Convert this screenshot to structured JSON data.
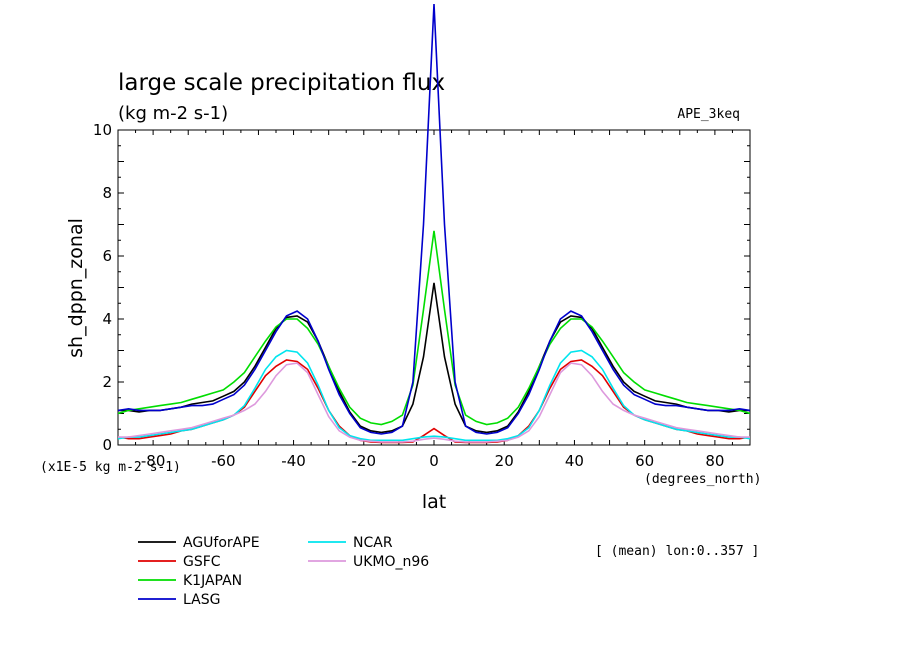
{
  "chart_data": {
    "type": "line",
    "title": "large scale precipitation flux",
    "units": "(kg m-2 s-1)",
    "experiment": "APE_3keq",
    "ylabel": "sh_dppn_zonal",
    "xlabel": "lat",
    "x_units": "(degrees_north)",
    "y_scale_note": "(x1E-5 kg m-2 s-1)",
    "averaging_note": "[ (mean) lon:0..357 ]",
    "xlim": [
      -90,
      90
    ],
    "ylim": [
      0,
      10
    ],
    "x_ticks": [
      -80,
      -60,
      -40,
      -20,
      0,
      20,
      40,
      60,
      80
    ],
    "y_ticks": [
      0,
      2,
      4,
      6,
      8,
      10
    ],
    "x": [
      -90,
      -87,
      -84,
      -81,
      -78,
      -75,
      -72,
      -69,
      -66,
      -63,
      -60,
      -57,
      -54,
      -51,
      -48,
      -45,
      -42,
      -39,
      -36,
      -33,
      -30,
      -27,
      -24,
      -21,
      -18,
      -15,
      -12,
      -9,
      -6,
      -3,
      0,
      3,
      6,
      9,
      12,
      15,
      18,
      21,
      24,
      27,
      30,
      33,
      36,
      39,
      42,
      45,
      48,
      51,
      54,
      57,
      60,
      63,
      66,
      69,
      72,
      75,
      78,
      81,
      84,
      87,
      90
    ],
    "series": [
      {
        "name": "AGUforAPE",
        "color": "#000000",
        "values": [
          1.1,
          1.1,
          1.05,
          1.1,
          1.1,
          1.15,
          1.2,
          1.3,
          1.35,
          1.4,
          1.55,
          1.7,
          2.0,
          2.5,
          3.1,
          3.7,
          4.05,
          4.1,
          3.9,
          3.3,
          2.5,
          1.7,
          1.05,
          0.6,
          0.45,
          0.4,
          0.45,
          0.6,
          1.3,
          2.8,
          5.15,
          2.8,
          1.3,
          0.6,
          0.45,
          0.4,
          0.45,
          0.6,
          1.05,
          1.7,
          2.5,
          3.3,
          3.9,
          4.1,
          4.05,
          3.7,
          3.1,
          2.5,
          2.0,
          1.7,
          1.55,
          1.4,
          1.35,
          1.3,
          1.2,
          1.15,
          1.1,
          1.1,
          1.05,
          1.1,
          1.1
        ]
      },
      {
        "name": "GSFC",
        "color": "#e00000",
        "values": [
          0.25,
          0.2,
          0.2,
          0.25,
          0.3,
          0.35,
          0.45,
          0.5,
          0.6,
          0.7,
          0.8,
          0.95,
          1.2,
          1.7,
          2.2,
          2.5,
          2.7,
          2.65,
          2.4,
          1.8,
          1.1,
          0.6,
          0.3,
          0.15,
          0.1,
          0.08,
          0.08,
          0.08,
          0.1,
          0.3,
          0.52,
          0.3,
          0.1,
          0.08,
          0.08,
          0.08,
          0.1,
          0.15,
          0.3,
          0.6,
          1.1,
          1.8,
          2.4,
          2.65,
          2.7,
          2.5,
          2.2,
          1.7,
          1.2,
          0.95,
          0.8,
          0.7,
          0.6,
          0.5,
          0.45,
          0.35,
          0.3,
          0.25,
          0.2,
          0.2,
          0.25
        ]
      },
      {
        "name": "K1JAPAN",
        "color": "#00dd00",
        "values": [
          1.0,
          1.1,
          1.15,
          1.2,
          1.25,
          1.3,
          1.35,
          1.45,
          1.55,
          1.65,
          1.75,
          2.0,
          2.3,
          2.8,
          3.3,
          3.75,
          4.0,
          4.0,
          3.7,
          3.2,
          2.5,
          1.8,
          1.2,
          0.85,
          0.7,
          0.65,
          0.75,
          0.95,
          1.9,
          4.3,
          6.8,
          4.3,
          1.9,
          0.95,
          0.75,
          0.65,
          0.7,
          0.85,
          1.2,
          1.8,
          2.5,
          3.2,
          3.7,
          4.0,
          4.0,
          3.75,
          3.3,
          2.8,
          2.3,
          2.0,
          1.75,
          1.65,
          1.55,
          1.45,
          1.35,
          1.3,
          1.25,
          1.2,
          1.15,
          1.1,
          1.0
        ]
      },
      {
        "name": "LASG",
        "color": "#0000cc",
        "values": [
          1.1,
          1.15,
          1.1,
          1.1,
          1.1,
          1.15,
          1.2,
          1.25,
          1.25,
          1.3,
          1.45,
          1.6,
          1.9,
          2.4,
          3.0,
          3.6,
          4.1,
          4.25,
          4.0,
          3.3,
          2.4,
          1.6,
          1.0,
          0.55,
          0.4,
          0.35,
          0.4,
          0.6,
          2.0,
          7.0,
          14.0,
          7.0,
          2.0,
          0.6,
          0.4,
          0.35,
          0.4,
          0.55,
          1.0,
          1.6,
          2.4,
          3.3,
          4.0,
          4.25,
          4.1,
          3.6,
          3.0,
          2.4,
          1.9,
          1.6,
          1.45,
          1.3,
          1.25,
          1.25,
          1.2,
          1.15,
          1.1,
          1.1,
          1.1,
          1.15,
          1.1
        ]
      },
      {
        "name": "NCAR",
        "color": "#00e5ee",
        "values": [
          0.2,
          0.25,
          0.25,
          0.3,
          0.35,
          0.4,
          0.45,
          0.5,
          0.6,
          0.7,
          0.8,
          0.95,
          1.25,
          1.8,
          2.4,
          2.8,
          3.0,
          2.95,
          2.6,
          1.9,
          1.1,
          0.55,
          0.3,
          0.2,
          0.15,
          0.15,
          0.15,
          0.15,
          0.2,
          0.25,
          0.28,
          0.25,
          0.2,
          0.15,
          0.15,
          0.15,
          0.15,
          0.2,
          0.3,
          0.55,
          1.1,
          1.9,
          2.6,
          2.95,
          3.0,
          2.8,
          2.4,
          1.8,
          1.25,
          0.95,
          0.8,
          0.7,
          0.6,
          0.5,
          0.45,
          0.4,
          0.35,
          0.3,
          0.25,
          0.25,
          0.2
        ]
      },
      {
        "name": "UKMO_n96",
        "color": "#dd99dd",
        "values": [
          0.25,
          0.25,
          0.3,
          0.35,
          0.4,
          0.45,
          0.5,
          0.55,
          0.65,
          0.75,
          0.85,
          0.95,
          1.1,
          1.3,
          1.7,
          2.2,
          2.55,
          2.6,
          2.3,
          1.6,
          0.9,
          0.45,
          0.25,
          0.15,
          0.12,
          0.1,
          0.1,
          0.1,
          0.12,
          0.18,
          0.22,
          0.18,
          0.12,
          0.1,
          0.1,
          0.1,
          0.12,
          0.15,
          0.25,
          0.45,
          0.9,
          1.6,
          2.3,
          2.6,
          2.55,
          2.2,
          1.7,
          1.3,
          1.1,
          0.95,
          0.85,
          0.75,
          0.65,
          0.55,
          0.5,
          0.45,
          0.4,
          0.35,
          0.3,
          0.25,
          0.25
        ]
      }
    ],
    "legend_placement": "bottom-left, two columns",
    "grid": false
  }
}
